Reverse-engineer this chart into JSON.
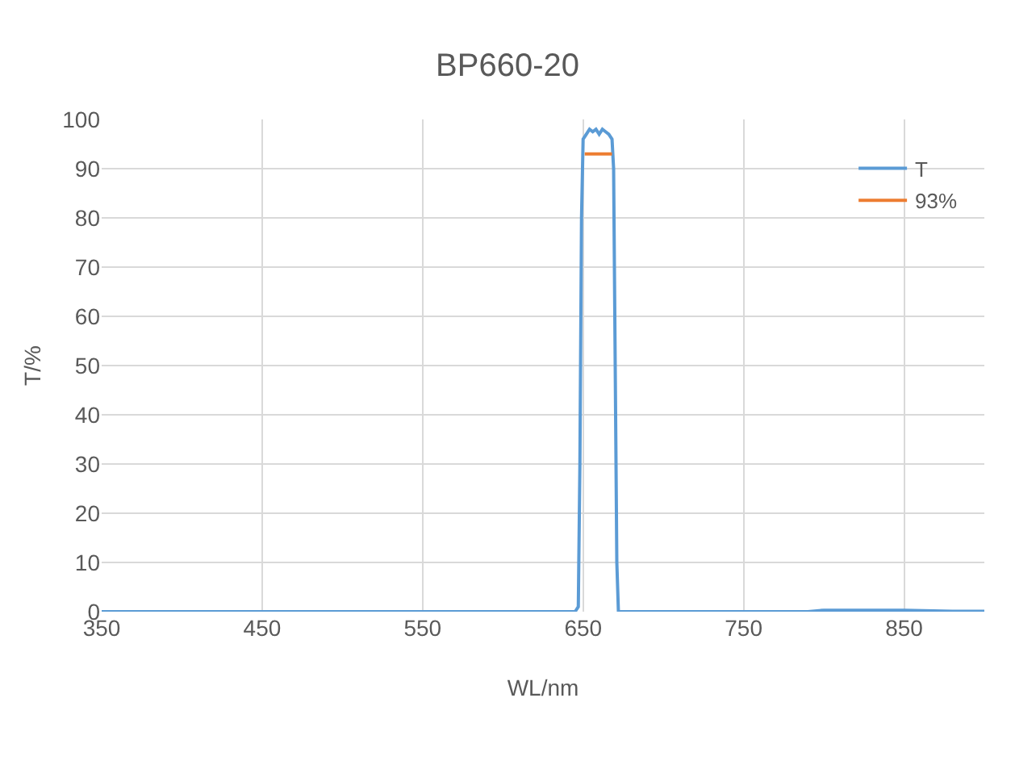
{
  "chart_data": {
    "type": "line",
    "title": "BP660-20",
    "xlabel": "WL/nm",
    "ylabel": "T/%",
    "xlim": [
      350,
      900
    ],
    "xticks": [
      350,
      450,
      550,
      650,
      750,
      850
    ],
    "ylim": [
      0,
      100
    ],
    "yticks": [
      0,
      10,
      20,
      30,
      40,
      50,
      60,
      70,
      80,
      90,
      100
    ],
    "grid": true,
    "legend": "top right",
    "marker": "none",
    "line_style": "solid",
    "series": [
      {
        "name": "T",
        "color": "#5b9bd5",
        "x": [
          350,
          500,
          600,
          645,
          647,
          648,
          649,
          650,
          652,
          654,
          656,
          658,
          660,
          662,
          664,
          666,
          668,
          669,
          670,
          671,
          672,
          674,
          700,
          790,
          800,
          850,
          880,
          900
        ],
        "values": [
          0,
          0,
          0,
          0,
          1,
          30,
          80,
          96,
          97,
          98,
          97.5,
          98,
          97,
          98,
          97.5,
          97,
          96,
          90,
          50,
          10,
          0,
          0,
          0,
          0,
          0.3,
          0.3,
          0.1,
          0.1
        ]
      },
      {
        "name": "93%",
        "color": "#ed7d31",
        "x": [
          651,
          668
        ],
        "values": [
          93,
          93
        ]
      }
    ]
  }
}
